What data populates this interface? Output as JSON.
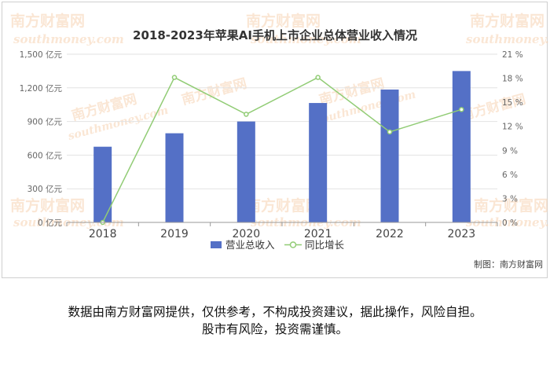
{
  "watermark": {
    "brand_cn": "南方财富网",
    "brand_en": "southmoney.com"
  },
  "chart_data": {
    "type": "bar+line",
    "title": "2018-2023年苹果AI手机上市企业总体营业收入情况",
    "categories": [
      "2018",
      "2019",
      "2020",
      "2021",
      "2022",
      "2023"
    ],
    "series": [
      {
        "name": "营业总收入",
        "type": "bar",
        "axis": "left",
        "color": "#5470c6",
        "values": [
          675,
          795,
          900,
          1065,
          1185,
          1350
        ]
      },
      {
        "name": "同比增长",
        "type": "line",
        "axis": "right",
        "color": "#91cc75",
        "values": [
          0,
          18.1,
          13.5,
          18.1,
          11.3,
          14.1
        ]
      }
    ],
    "y_left": {
      "min": 0,
      "max": 1500,
      "tick_labels": [
        "0 亿元",
        "300 亿元",
        "600 亿元",
        "900 亿元",
        "1,200 亿元",
        "1,500 亿元"
      ]
    },
    "y_right": {
      "min": 0,
      "max": 21,
      "tick_labels": [
        "0 %",
        "3 %",
        "6 %",
        "9 %",
        "12 %",
        "15 %",
        "18 %",
        "21 %"
      ]
    },
    "grid": true,
    "legend_position": "bottom-center",
    "source_label": "制图：南方财富网"
  },
  "disclaimer": {
    "line1": "数据由南方财富网提供，仅供参考，不构成投资建议，据此操作，风险自担。",
    "line2": "股市有风险，投资需谨慎。"
  }
}
